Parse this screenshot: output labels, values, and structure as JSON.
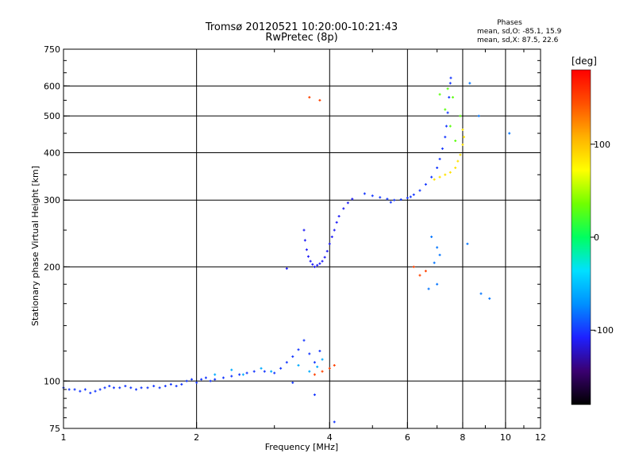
{
  "chart_data": {
    "type": "scatter",
    "title": "Tromsø 20120521 10:20:00-10:21:43",
    "subtitle": "RwPretec (8p)",
    "xlabel": "Frequency [MHz]",
    "ylabel": "Stationary phase Virtual Height [km]",
    "x_scale": "log",
    "y_scale": "log",
    "xlim": [
      1,
      12
    ],
    "ylim": [
      75,
      750
    ],
    "x_ticks": [
      1,
      2,
      4,
      6,
      8,
      10,
      12
    ],
    "y_ticks": [
      75,
      100,
      200,
      300,
      400,
      500,
      600,
      750
    ],
    "grid": true,
    "phase_legend": {
      "title": "Phases",
      "line1": "mean, sd,O: -85.1, 15.9",
      "line2": "mean, sd,X: 87.5, 22.6"
    },
    "colorbar": {
      "label": "[deg]",
      "range": [
        -180,
        180
      ],
      "ticks": [
        100,
        0,
        -100
      ],
      "colors": [
        "#000000",
        "#3a0070",
        "#1e20ff",
        "#0090ff",
        "#00e0ff",
        "#00ff60",
        "#70ff00",
        "#ffff00",
        "#ffb000",
        "#ff5000",
        "#ff0000"
      ]
    },
    "series": [
      {
        "phase_deg": -100,
        "points": [
          [
            1.0,
            96
          ],
          [
            1.03,
            95
          ],
          [
            1.06,
            95
          ],
          [
            1.09,
            94
          ],
          [
            1.12,
            95
          ],
          [
            1.15,
            93
          ],
          [
            1.18,
            94
          ],
          [
            1.21,
            95
          ],
          [
            1.24,
            96
          ],
          [
            1.27,
            97
          ],
          [
            1.3,
            96
          ],
          [
            1.34,
            96
          ],
          [
            1.38,
            97
          ],
          [
            1.42,
            96
          ],
          [
            1.46,
            95
          ],
          [
            1.5,
            96
          ],
          [
            1.55,
            96
          ],
          [
            1.6,
            97
          ],
          [
            1.65,
            96
          ],
          [
            1.7,
            97
          ],
          [
            1.75,
            98
          ],
          [
            1.8,
            97
          ],
          [
            1.85,
            98
          ],
          [
            1.9,
            100
          ],
          [
            1.95,
            101
          ],
          [
            2.0,
            99
          ],
          [
            2.05,
            101
          ],
          [
            2.1,
            102
          ],
          [
            2.15,
            100
          ],
          [
            2.2,
            101
          ],
          [
            2.3,
            102
          ],
          [
            2.4,
            103
          ],
          [
            2.5,
            104
          ],
          [
            2.6,
            105
          ],
          [
            2.7,
            106
          ],
          [
            2.85,
            106
          ],
          [
            3.0,
            105
          ],
          [
            3.1,
            108
          ],
          [
            3.2,
            112
          ],
          [
            3.3,
            116
          ],
          [
            3.4,
            121
          ],
          [
            3.5,
            128
          ],
          [
            3.6,
            118
          ],
          [
            3.7,
            112
          ],
          [
            3.8,
            120
          ],
          [
            3.3,
            99
          ],
          [
            3.7,
            92
          ],
          [
            4.1,
            78
          ]
        ]
      },
      {
        "phase_deg": -60,
        "points": [
          [
            2.2,
            104
          ],
          [
            2.4,
            107
          ],
          [
            2.55,
            104
          ],
          [
            2.8,
            108
          ],
          [
            2.95,
            106
          ],
          [
            3.4,
            110
          ],
          [
            3.6,
            106
          ],
          [
            3.75,
            109
          ],
          [
            3.85,
            114
          ]
        ]
      },
      {
        "phase_deg": -110,
        "points": [
          [
            3.5,
            250
          ],
          [
            3.52,
            235
          ],
          [
            3.55,
            222
          ],
          [
            3.58,
            213
          ],
          [
            3.62,
            207
          ],
          [
            3.66,
            203
          ],
          [
            3.7,
            200
          ],
          [
            3.75,
            202
          ],
          [
            3.8,
            204
          ],
          [
            3.85,
            207
          ],
          [
            3.9,
            212
          ],
          [
            3.95,
            220
          ],
          [
            4.0,
            230
          ],
          [
            4.05,
            240
          ],
          [
            4.1,
            250
          ],
          [
            4.15,
            262
          ],
          [
            4.2,
            272
          ],
          [
            4.3,
            285
          ],
          [
            4.4,
            295
          ],
          [
            4.5,
            302
          ],
          [
            3.2,
            198
          ]
        ]
      },
      {
        "phase_deg": -100,
        "points": [
          [
            4.8,
            312
          ],
          [
            5.0,
            308
          ],
          [
            5.2,
            305
          ],
          [
            5.4,
            302
          ],
          [
            5.6,
            300
          ],
          [
            5.8,
            301
          ],
          [
            6.0,
            304
          ],
          [
            6.2,
            310
          ],
          [
            6.4,
            318
          ],
          [
            6.6,
            330
          ],
          [
            6.8,
            345
          ],
          [
            7.0,
            365
          ],
          [
            7.1,
            385
          ],
          [
            7.2,
            410
          ],
          [
            7.3,
            440
          ],
          [
            7.35,
            470
          ],
          [
            7.4,
            510
          ],
          [
            7.45,
            560
          ],
          [
            7.5,
            610
          ],
          [
            7.52,
            630
          ],
          [
            5.5,
            296
          ],
          [
            6.1,
            306
          ]
        ]
      },
      {
        "phase_deg": -80,
        "points": [
          [
            6.8,
            240
          ],
          [
            7.0,
            225
          ],
          [
            7.1,
            215
          ],
          [
            6.9,
            205
          ],
          [
            7.0,
            180
          ],
          [
            6.7,
            175
          ],
          [
            8.2,
            230
          ],
          [
            8.8,
            170
          ],
          [
            9.2,
            165
          ],
          [
            8.3,
            610
          ],
          [
            8.7,
            500
          ],
          [
            10.2,
            450
          ]
        ]
      },
      {
        "phase_deg": 85,
        "points": [
          [
            6.9,
            340
          ],
          [
            7.1,
            345
          ],
          [
            7.3,
            350
          ],
          [
            7.5,
            355
          ],
          [
            7.7,
            365
          ],
          [
            7.8,
            380
          ],
          [
            7.9,
            395
          ],
          [
            8.0,
            420
          ],
          [
            8.05,
            440
          ],
          [
            8.0,
            460
          ]
        ]
      },
      {
        "phase_deg": 30,
        "points": [
          [
            7.1,
            570
          ],
          [
            7.3,
            520
          ],
          [
            7.5,
            470
          ],
          [
            7.7,
            430
          ],
          [
            7.9,
            500
          ],
          [
            7.4,
            590
          ],
          [
            7.6,
            560
          ]
        ]
      },
      {
        "phase_deg": 150,
        "points": [
          [
            6.2,
            200
          ],
          [
            6.4,
            190
          ],
          [
            6.6,
            195
          ],
          [
            3.7,
            104
          ],
          [
            3.85,
            106
          ],
          [
            4.0,
            108
          ],
          [
            4.1,
            110
          ],
          [
            3.6,
            560
          ],
          [
            3.8,
            550
          ]
        ]
      }
    ]
  }
}
